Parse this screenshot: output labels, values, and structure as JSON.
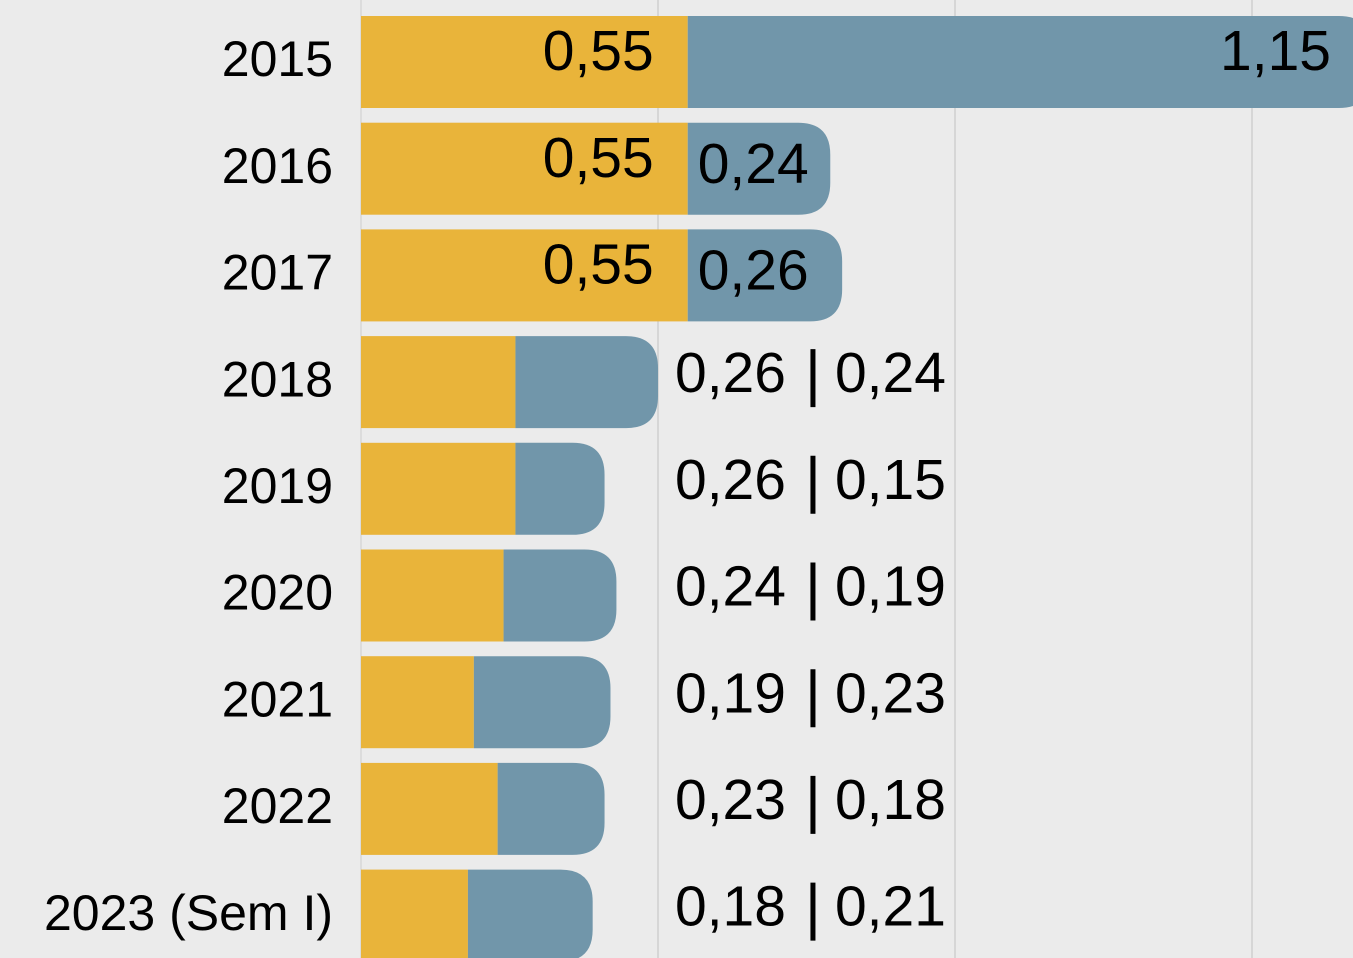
{
  "chart_data": {
    "type": "stacked-bar",
    "categories": [
      "2015",
      "2016",
      "2017",
      "2018",
      "2019",
      "2020",
      "2021",
      "2022",
      "2023 (Sem I)"
    ],
    "series": [
      {
        "color": "#e9b43a",
        "values": [
          0.55,
          0.55,
          0.55,
          0.26,
          0.26,
          0.24,
          0.19,
          0.23,
          0.18
        ],
        "value_labels": [
          "0,55",
          "0,55",
          "0,55",
          "0,26",
          "0,26",
          "0,24",
          "0,19",
          "0,23",
          "0,18"
        ]
      },
      {
        "color": "#7196aa",
        "values": [
          1.15,
          0.24,
          0.26,
          0.24,
          0.15,
          0.19,
          0.23,
          0.18,
          0.21
        ],
        "value_labels": [
          "1,15",
          "0,24",
          "0,26",
          "0,24",
          "0,15",
          "0,19",
          "0,23",
          "0,18",
          "0,21"
        ]
      }
    ],
    "xlim": [
      0,
      1.67
    ],
    "xticks": [
      0.5,
      1,
      1.5
    ],
    "grid": true
  }
}
